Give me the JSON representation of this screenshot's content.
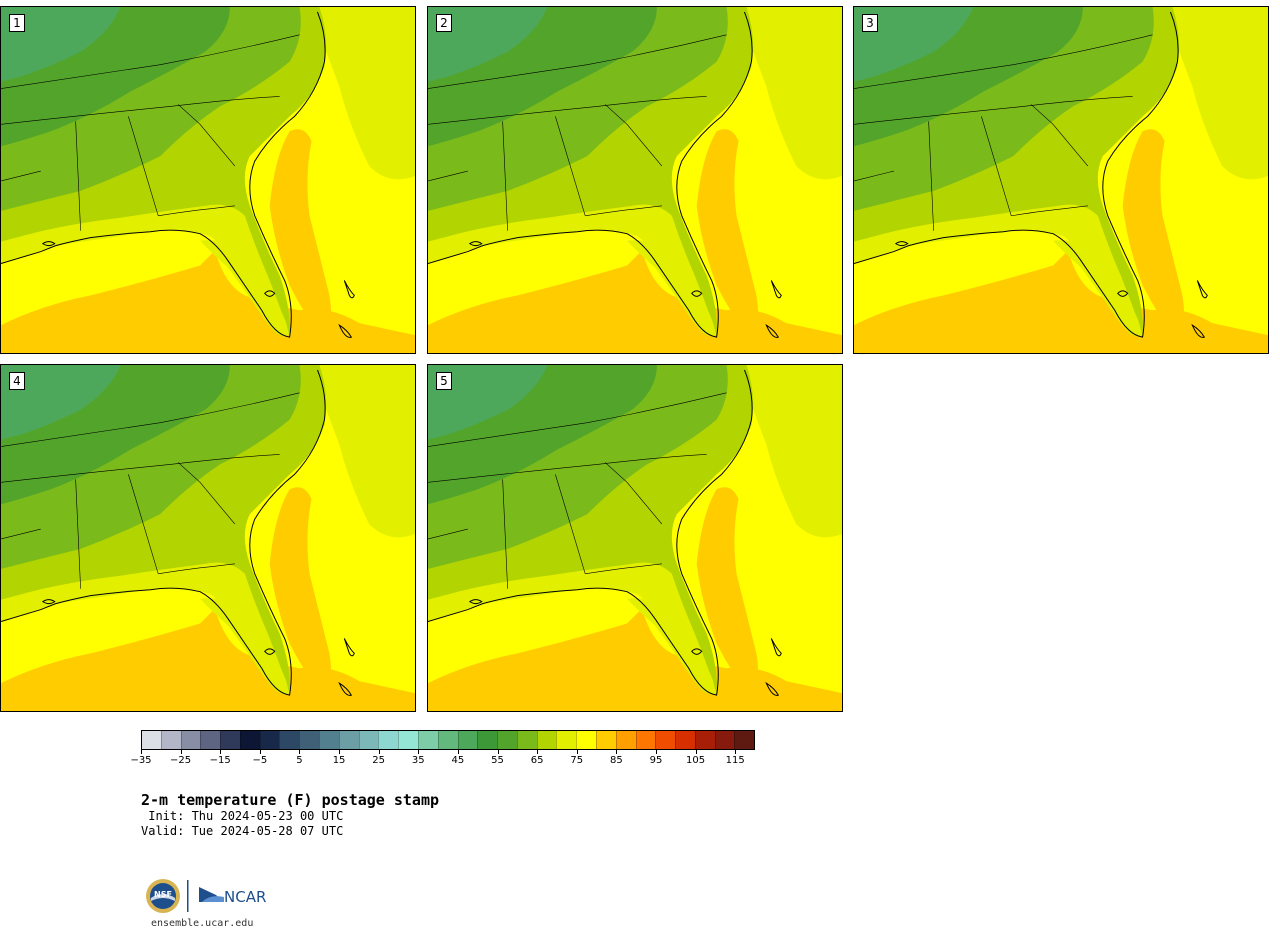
{
  "panels": [
    {
      "label": "1"
    },
    {
      "label": "2"
    },
    {
      "label": "3"
    },
    {
      "label": "4"
    },
    {
      "label": "5"
    }
  ],
  "colorbar": {
    "colors": [
      "#dcdfe5",
      "#b2b6c7",
      "#888ea4",
      "#5d6582",
      "#2f3a5b",
      "#0c1736",
      "#172849",
      "#2d4864",
      "#3f6077",
      "#53808f",
      "#6b9ea5",
      "#7cb8b8",
      "#8dd7d0",
      "#96e6d6",
      "#7dcea8",
      "#63b87e",
      "#4ea85b",
      "#3d9838",
      "#52a52a",
      "#7aba1a",
      "#b2d400",
      "#e2f000",
      "#ffff00",
      "#ffcc00",
      "#ff9f00",
      "#ff7700",
      "#f04d00",
      "#d72f00",
      "#a81e06",
      "#861a0c",
      "#5e1a10"
    ],
    "ticks": [
      "−35",
      "−25",
      "−15",
      "−5",
      "5",
      "15",
      "25",
      "35",
      "45",
      "55",
      "65",
      "75",
      "85",
      "95",
      "105",
      "115"
    ]
  },
  "title": "2-m temperature (F) postage stamp",
  "init": " Init: Thu 2024-05-23 00 UTC",
  "valid": "Valid: Tue 2024-05-28 07 UTC",
  "logo": {
    "org1": "NSF",
    "org2": "NCAR"
  },
  "footer_url": "ensemble.ucar.edu"
}
